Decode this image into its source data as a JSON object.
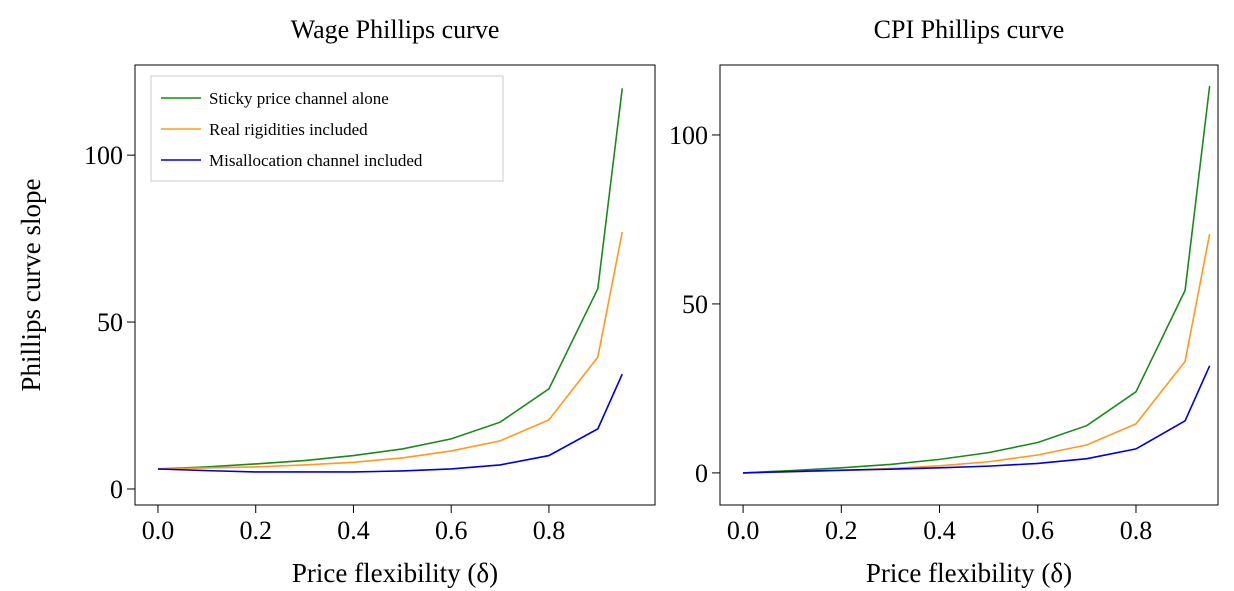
{
  "chart_data": [
    {
      "type": "line",
      "title": "Wage Phillips curve",
      "xlabel": "Price flexibility (δ)",
      "ylabel": "Phillips curve slope",
      "x": [
        0,
        0.1,
        0.2,
        0.3,
        0.4,
        0.5,
        0.6,
        0.7,
        0.8,
        0.9,
        0.95
      ],
      "series": [
        {
          "name": "Sticky price channel alone",
          "color": "#1a8a1a",
          "values": [
            6,
            6.6,
            7.5,
            8.5,
            10,
            12,
            15,
            20,
            30,
            60,
            120
          ]
        },
        {
          "name": "Real rigidities included",
          "color": "#ff9a1a",
          "values": [
            6,
            6.3,
            6.6,
            7.2,
            8,
            9.3,
            11.4,
            14.4,
            20.7,
            39.5,
            77
          ]
        },
        {
          "name": "Misallocation channel included",
          "color": "#0000dd",
          "values": [
            6,
            5.5,
            5.1,
            5.1,
            5.1,
            5.4,
            6,
            7.2,
            10,
            18,
            34.4
          ]
        }
      ],
      "xlim": [
        -0.047,
        1.017
      ],
      "ylim": [
        -4.8,
        127
      ],
      "xticks": [
        {
          "value": 0,
          "label": "0.0"
        },
        0.2,
        0.4,
        0.6,
        0.8
      ],
      "yticks": [
        0,
        50,
        100
      ],
      "legend": "upper left"
    },
    {
      "type": "line",
      "title": "CPI Phillips curve",
      "xlabel": "Price flexibility (δ)",
      "x": [
        0,
        0.1,
        0.2,
        0.3,
        0.4,
        0.5,
        0.6,
        0.7,
        0.8,
        0.9,
        0.95
      ],
      "series": [
        {
          "color": "#1a8a1a",
          "values": [
            0,
            0.7,
            1.5,
            2.5,
            4,
            6,
            9,
            14,
            24,
            54,
            114.5
          ]
        },
        {
          "color": "#ff9a1a",
          "values": [
            0,
            0.3,
            0.7,
            1.3,
            2.1,
            3.3,
            5.3,
            8.3,
            14.5,
            33,
            70.7
          ]
        },
        {
          "color": "#0000dd",
          "values": [
            0,
            0.4,
            0.8,
            1.1,
            1.5,
            2,
            2.8,
            4.2,
            7.1,
            15.4,
            31.7
          ]
        }
      ],
      "xlim": [
        -0.047,
        0.967
      ],
      "ylim": [
        -9.5,
        120.7
      ],
      "xticks": [
        {
          "value": 0,
          "label": "0.0"
        },
        0.2,
        0.4,
        0.6,
        0.8
      ],
      "yticks": [
        0,
        50,
        100
      ]
    }
  ]
}
